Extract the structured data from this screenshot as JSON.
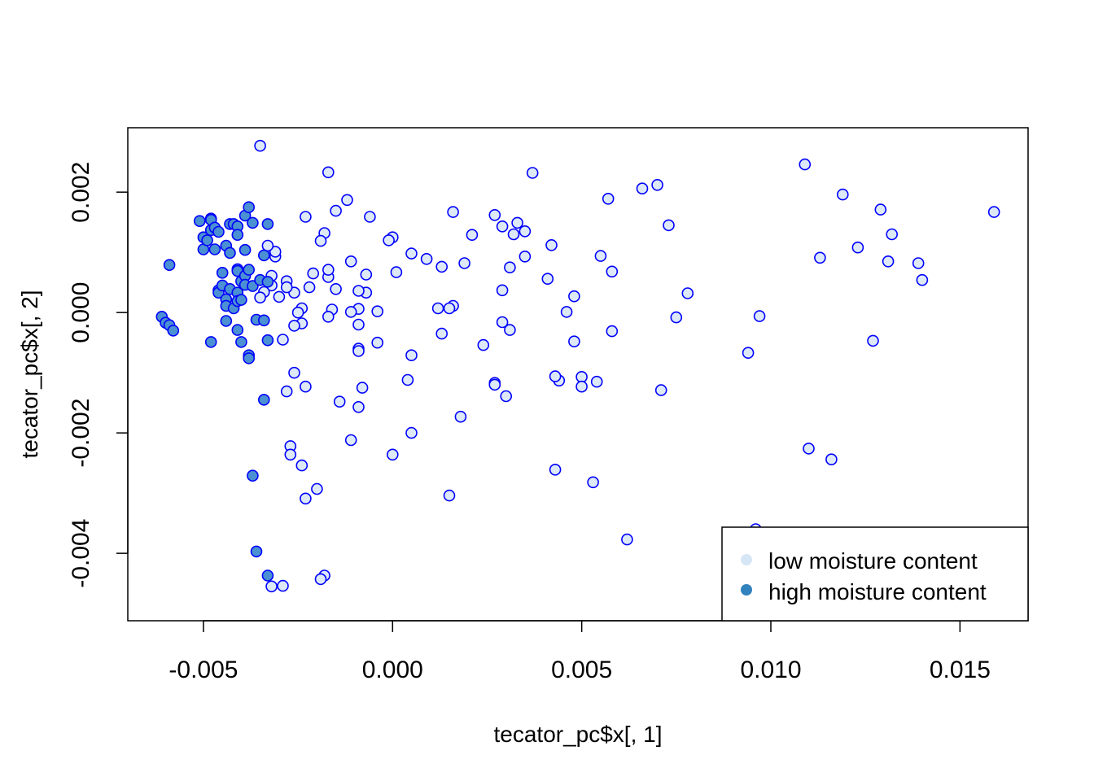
{
  "chart_data": {
    "type": "scatter",
    "title": "",
    "xlabel": "tecator_pc$x[, 1]",
    "ylabel": "tecator_pc$x[, 2]",
    "xlim": [
      -0.007,
      0.0168
    ],
    "ylim": [
      -0.00512,
      0.00307
    ],
    "x_ticks": [
      -0.005,
      0.0,
      0.005,
      0.01,
      0.015
    ],
    "x_tick_labels": [
      "-0.005",
      "0.000",
      "0.005",
      "0.010",
      "0.015"
    ],
    "y_ticks": [
      -0.004,
      -0.002,
      0.0,
      0.002
    ],
    "y_tick_labels": [
      "-0.004",
      "-0.002",
      "0.000",
      "0.002"
    ],
    "grid": false,
    "legend_position": "bottom-right",
    "colors": {
      "stroke": "#0000ff",
      "low": "#dde9f6",
      "high": "#4a90d2",
      "legend_low": "#d6e6f5",
      "legend_high": "#3182bd"
    },
    "series": [
      {
        "name": "low moisture content",
        "points": [
          [
            -0.0035,
            0.00277
          ],
          [
            -0.0017,
            0.00233
          ],
          [
            0.0037,
            0.00232
          ],
          [
            0.0109,
            0.00246
          ],
          [
            0.0119,
            0.00196
          ],
          [
            0.0159,
            0.00167
          ],
          [
            0.0129,
            0.00171
          ],
          [
            0.0132,
            0.0013
          ],
          [
            0.0123,
            0.00108
          ],
          [
            0.0113,
            0.00091
          ],
          [
            0.0131,
            0.00085
          ],
          [
            0.0139,
            0.00082
          ],
          [
            0.014,
            0.00054
          ],
          [
            0.0127,
            -0.00047
          ],
          [
            0.0097,
            -6e-05
          ],
          [
            0.0094,
            -0.00067
          ],
          [
            0.0116,
            -0.00244
          ],
          [
            0.011,
            -0.00226
          ],
          [
            0.0096,
            -0.0036
          ],
          [
            0.0078,
            0.00032
          ],
          [
            0.0075,
            -8e-05
          ],
          [
            0.0071,
            -0.00129
          ],
          [
            0.0073,
            0.00145
          ],
          [
            0.007,
            0.00212
          ],
          [
            0.0066,
            0.00206
          ],
          [
            0.0057,
            0.00189
          ],
          [
            0.0055,
            0.00094
          ],
          [
            0.0058,
            0.00068
          ],
          [
            0.0058,
            -0.00031
          ],
          [
            0.0062,
            -0.00377
          ],
          [
            0.0053,
            -0.00282
          ],
          [
            0.0054,
            -0.00115
          ],
          [
            0.005,
            -0.00107
          ],
          [
            0.005,
            -0.00123
          ],
          [
            0.0048,
            -0.00048
          ],
          [
            0.0048,
            0.00027
          ],
          [
            0.0046,
            1e-05
          ],
          [
            0.0044,
            -0.00113
          ],
          [
            0.0043,
            -0.00106
          ],
          [
            0.0043,
            -0.00261
          ],
          [
            0.0042,
            0.00112
          ],
          [
            0.0041,
            0.00056
          ],
          [
            0.0035,
            0.00135
          ],
          [
            0.0035,
            0.00093
          ],
          [
            0.0033,
            0.00149
          ],
          [
            0.0032,
            0.0013
          ],
          [
            0.0031,
            0.00075
          ],
          [
            0.0031,
            -0.00029
          ],
          [
            0.003,
            -0.00139
          ],
          [
            0.0029,
            0.00143
          ],
          [
            0.0029,
            0.00037
          ],
          [
            0.0029,
            -0.00016
          ],
          [
            0.0027,
            0.00162
          ],
          [
            0.0027,
            -0.00117
          ],
          [
            0.0027,
            -0.0012
          ],
          [
            0.0024,
            -0.00054
          ],
          [
            0.0021,
            0.00129
          ],
          [
            0.0019,
            0.00082
          ],
          [
            0.0018,
            -0.00173
          ],
          [
            0.0016,
            0.00167
          ],
          [
            0.0016,
            0.00011
          ],
          [
            0.0015,
            7e-05
          ],
          [
            0.0015,
            -0.00304
          ],
          [
            0.0013,
            0.00076
          ],
          [
            0.0013,
            -0.00035
          ],
          [
            0.0012,
            7e-05
          ],
          [
            0.0009,
            0.00089
          ],
          [
            0.0005,
            0.00098
          ],
          [
            0.0005,
            -0.00071
          ],
          [
            0.0005,
            -0.002
          ],
          [
            0.0004,
            -0.00112
          ],
          [
            0.0001,
            0.00067
          ],
          [
            0.0,
            0.00125
          ],
          [
            -0.0001,
            0.0012
          ],
          [
            0.0,
            -0.00236
          ],
          [
            -0.0004,
            2e-05
          ],
          [
            -0.0004,
            -0.0005
          ],
          [
            -0.0006,
            0.00159
          ],
          [
            -0.0007,
            0.00063
          ],
          [
            -0.0007,
            0.00033
          ],
          [
            -0.0008,
            -0.00125
          ],
          [
            -0.0009,
            6e-05
          ],
          [
            -0.0009,
            -0.0002
          ],
          [
            -0.0009,
            -0.0006
          ],
          [
            -0.0009,
            -0.00064
          ],
          [
            -0.0009,
            -0.00157
          ],
          [
            -0.0009,
            0.00036
          ],
          [
            -0.0011,
            0.00085
          ],
          [
            -0.0011,
            1e-05
          ],
          [
            -0.0011,
            -0.00212
          ],
          [
            -0.0012,
            0.00187
          ],
          [
            -0.0014,
            -0.00148
          ],
          [
            -0.0015,
            0.00169
          ],
          [
            -0.0015,
            0.00039
          ],
          [
            -0.0016,
            5e-05
          ],
          [
            -0.0017,
            -7e-05
          ],
          [
            -0.0017,
            0.00059
          ],
          [
            -0.0017,
            0.00071
          ],
          [
            -0.0018,
            -0.00437
          ],
          [
            -0.0018,
            0.00132
          ],
          [
            -0.0019,
            0.00119
          ],
          [
            -0.0019,
            -0.00443
          ],
          [
            -0.002,
            -0.00293
          ],
          [
            -0.0021,
            0.00065
          ],
          [
            -0.0022,
            0.00042
          ],
          [
            -0.0023,
            0.00159
          ],
          [
            -0.0023,
            -0.00123
          ],
          [
            -0.0023,
            -0.00309
          ],
          [
            -0.0024,
            -0.00254
          ],
          [
            -0.0024,
            7e-05
          ],
          [
            -0.0024,
            -0.00018
          ],
          [
            -0.0025,
            0.0
          ],
          [
            -0.0026,
            -0.00022
          ],
          [
            -0.0026,
            -0.001
          ],
          [
            -0.0026,
            0.00033
          ],
          [
            -0.0027,
            -0.00222
          ],
          [
            -0.0027,
            -0.00236
          ],
          [
            -0.0028,
            0.00052
          ],
          [
            -0.0028,
            -0.00131
          ],
          [
            -0.0029,
            -0.00045
          ],
          [
            -0.0029,
            -0.00454
          ],
          [
            -0.003,
            0.00026
          ],
          [
            -0.0031,
            0.00093
          ],
          [
            -0.0031,
            0.00101
          ],
          [
            -0.0032,
            0.00045
          ],
          [
            -0.0032,
            -0.00455
          ],
          [
            -0.0033,
            0.00111
          ],
          [
            -0.0034,
            0.00034
          ],
          [
            -0.0035,
            0.00025
          ],
          [
            -0.0028,
            0.00042
          ],
          [
            -0.0032,
            0.00061
          ]
        ]
      },
      {
        "name": "high moisture content",
        "points": [
          [
            -0.0061,
            -7e-05
          ],
          [
            -0.006,
            -0.00017
          ],
          [
            -0.0059,
            -0.00021
          ],
          [
            -0.0058,
            -0.0003
          ],
          [
            -0.0059,
            0.00079
          ],
          [
            -0.0051,
            0.00152
          ],
          [
            -0.005,
            0.00125
          ],
          [
            -0.005,
            0.00105
          ],
          [
            -0.0049,
            0.0012
          ],
          [
            -0.0048,
            0.00156
          ],
          [
            -0.0048,
            0.00154
          ],
          [
            -0.0048,
            0.00137
          ],
          [
            -0.0048,
            -0.00049
          ],
          [
            -0.0047,
            0.00105
          ],
          [
            -0.0047,
            0.00141
          ],
          [
            -0.0046,
            0.00134
          ],
          [
            -0.0046,
            0.00037
          ],
          [
            -0.0046,
            0.00033
          ],
          [
            -0.0045,
            0.00066
          ],
          [
            -0.0045,
            0.00045
          ],
          [
            -0.0044,
            0.00111
          ],
          [
            -0.0044,
            0.00022
          ],
          [
            -0.0044,
            0.00011
          ],
          [
            -0.0044,
            -0.00014
          ],
          [
            -0.0043,
            0.00147
          ],
          [
            -0.0043,
            0.00099
          ],
          [
            -0.0043,
            0.00039
          ],
          [
            -0.0042,
            0.00147
          ],
          [
            -0.0042,
            7e-05
          ],
          [
            -0.0041,
            0.00143
          ],
          [
            -0.0041,
            0.00129
          ],
          [
            -0.0041,
            0.00072
          ],
          [
            -0.0041,
            0.00069
          ],
          [
            -0.0041,
            0.00033
          ],
          [
            -0.0041,
            0.00019
          ],
          [
            -0.0041,
            -0.00029
          ],
          [
            -0.004,
            0.00052
          ],
          [
            -0.004,
            0.00021
          ],
          [
            -0.004,
            -0.00049
          ],
          [
            -0.0039,
            0.00161
          ],
          [
            -0.0039,
            0.00104
          ],
          [
            -0.0039,
            0.00061
          ],
          [
            -0.0039,
            0.00046
          ],
          [
            -0.0038,
            0.00175
          ],
          [
            -0.0038,
            0.00071
          ],
          [
            -0.0038,
            -0.00071
          ],
          [
            -0.0038,
            -0.00076
          ],
          [
            -0.0037,
            0.00149
          ],
          [
            -0.0037,
            0.00044
          ],
          [
            -0.0037,
            -0.00271
          ],
          [
            -0.0036,
            -0.00397
          ],
          [
            -0.0036,
            -0.00012
          ],
          [
            -0.0035,
            0.00054
          ],
          [
            -0.0034,
            0.00095
          ],
          [
            -0.0034,
            -0.00013
          ],
          [
            -0.0034,
            -0.00145
          ],
          [
            -0.0033,
            0.00147
          ],
          [
            -0.0033,
            0.00051
          ],
          [
            -0.0033,
            -0.00046
          ],
          [
            -0.0033,
            -0.00437
          ]
        ]
      }
    ]
  },
  "legend": [
    {
      "label": "low moisture content"
    },
    {
      "label": "high moisture content"
    }
  ]
}
